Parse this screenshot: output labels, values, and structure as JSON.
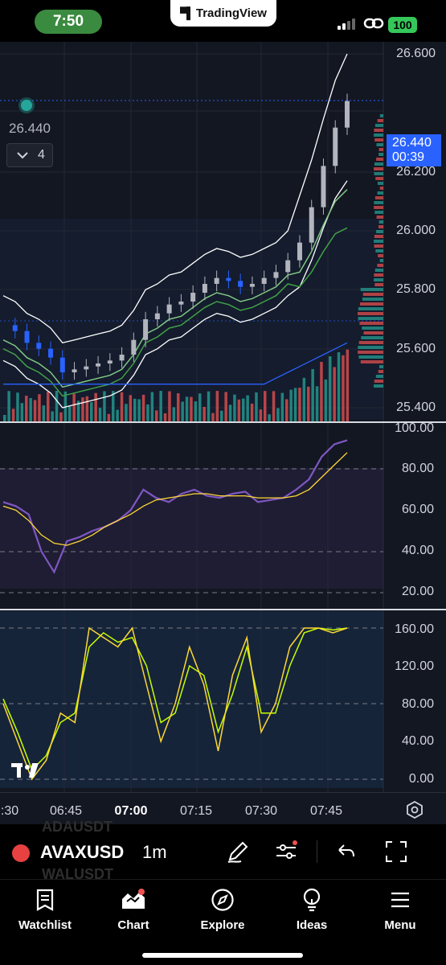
{
  "status_bar": {
    "time": "7:50",
    "app_name": "TradingView",
    "battery": "100"
  },
  "chart": {
    "last_price": "26.440",
    "countdown": "00:39",
    "overlay_price": "26.440",
    "indicators_count": "4",
    "price_axis": [
      "26.600",
      "26.200",
      "26.000",
      "25.800",
      "25.600",
      "25.400"
    ],
    "rsi_axis": [
      "100.00",
      "80.00",
      "60.00",
      "40.00",
      "20.00"
    ],
    "stoch_axis": [
      "160.00",
      "120.00",
      "80.00",
      "40.00",
      "0.00"
    ],
    "time_axis": [
      {
        "label": ":30",
        "bold": false
      },
      {
        "label": "06:45",
        "bold": false
      },
      {
        "label": "07:00",
        "bold": true
      },
      {
        "label": "07:15",
        "bold": false
      },
      {
        "label": "07:30",
        "bold": false
      },
      {
        "label": "07:45",
        "bold": false
      }
    ],
    "colors": {
      "bull": "#b2b5be",
      "bear": "#2962ff",
      "volume_up": "#26a69a",
      "volume_down": "#ef5350",
      "rsi_line": "#7e57c2",
      "rsi_signal": "#fdd835",
      "stoch_k": "#fdd835",
      "stoch_d": "#c6ff00"
    }
  },
  "chart_data": {
    "type": "line",
    "price": {
      "ylim": [
        25.35,
        26.65
      ],
      "close": [
        25.68,
        25.66,
        25.62,
        25.6,
        25.57,
        25.52,
        25.53,
        25.54,
        25.55,
        25.56,
        25.58,
        25.63,
        25.7,
        25.72,
        25.75,
        25.76,
        25.79,
        25.82,
        25.84,
        25.83,
        25.81,
        25.82,
        25.84,
        25.86,
        25.9,
        25.96,
        26.08,
        26.22,
        26.35,
        26.44
      ]
    },
    "rsi": {
      "ylim": [
        15,
        100
      ],
      "values": [
        64,
        62,
        58,
        40,
        30,
        45,
        47,
        50,
        52,
        55,
        60,
        70,
        66,
        64,
        68,
        70,
        67,
        66,
        68,
        69,
        64,
        65,
        66,
        70,
        75,
        86,
        92,
        94
      ],
      "signal": [
        62,
        60,
        55,
        48,
        44,
        43,
        45,
        48,
        52,
        55,
        58,
        62,
        65,
        66,
        67,
        68,
        68,
        67,
        67,
        67,
        66,
        66,
        66,
        67,
        70,
        76,
        82,
        88
      ]
    },
    "stoch": {
      "ylim": [
        0,
        165
      ],
      "k": [
        80,
        40,
        0,
        20,
        70,
        60,
        160,
        150,
        140,
        160,
        100,
        40,
        80,
        140,
        100,
        30,
        110,
        150,
        50,
        80,
        140,
        160,
        160,
        155,
        160
      ],
      "d": [
        85,
        50,
        10,
        25,
        60,
        70,
        140,
        155,
        145,
        150,
        120,
        60,
        70,
        120,
        110,
        50,
        90,
        140,
        70,
        70,
        120,
        155,
        160,
        158,
        160
      ]
    }
  },
  "symbol_bar": {
    "symbol": "AVAXUSD",
    "interval": "1m",
    "ghost_above": "ADAUSDT",
    "ghost_below": "WALUSDT"
  },
  "nav": {
    "items": [
      {
        "label": "Watchlist"
      },
      {
        "label": "Chart"
      },
      {
        "label": "Explore"
      },
      {
        "label": "Ideas"
      },
      {
        "label": "Menu"
      }
    ]
  }
}
